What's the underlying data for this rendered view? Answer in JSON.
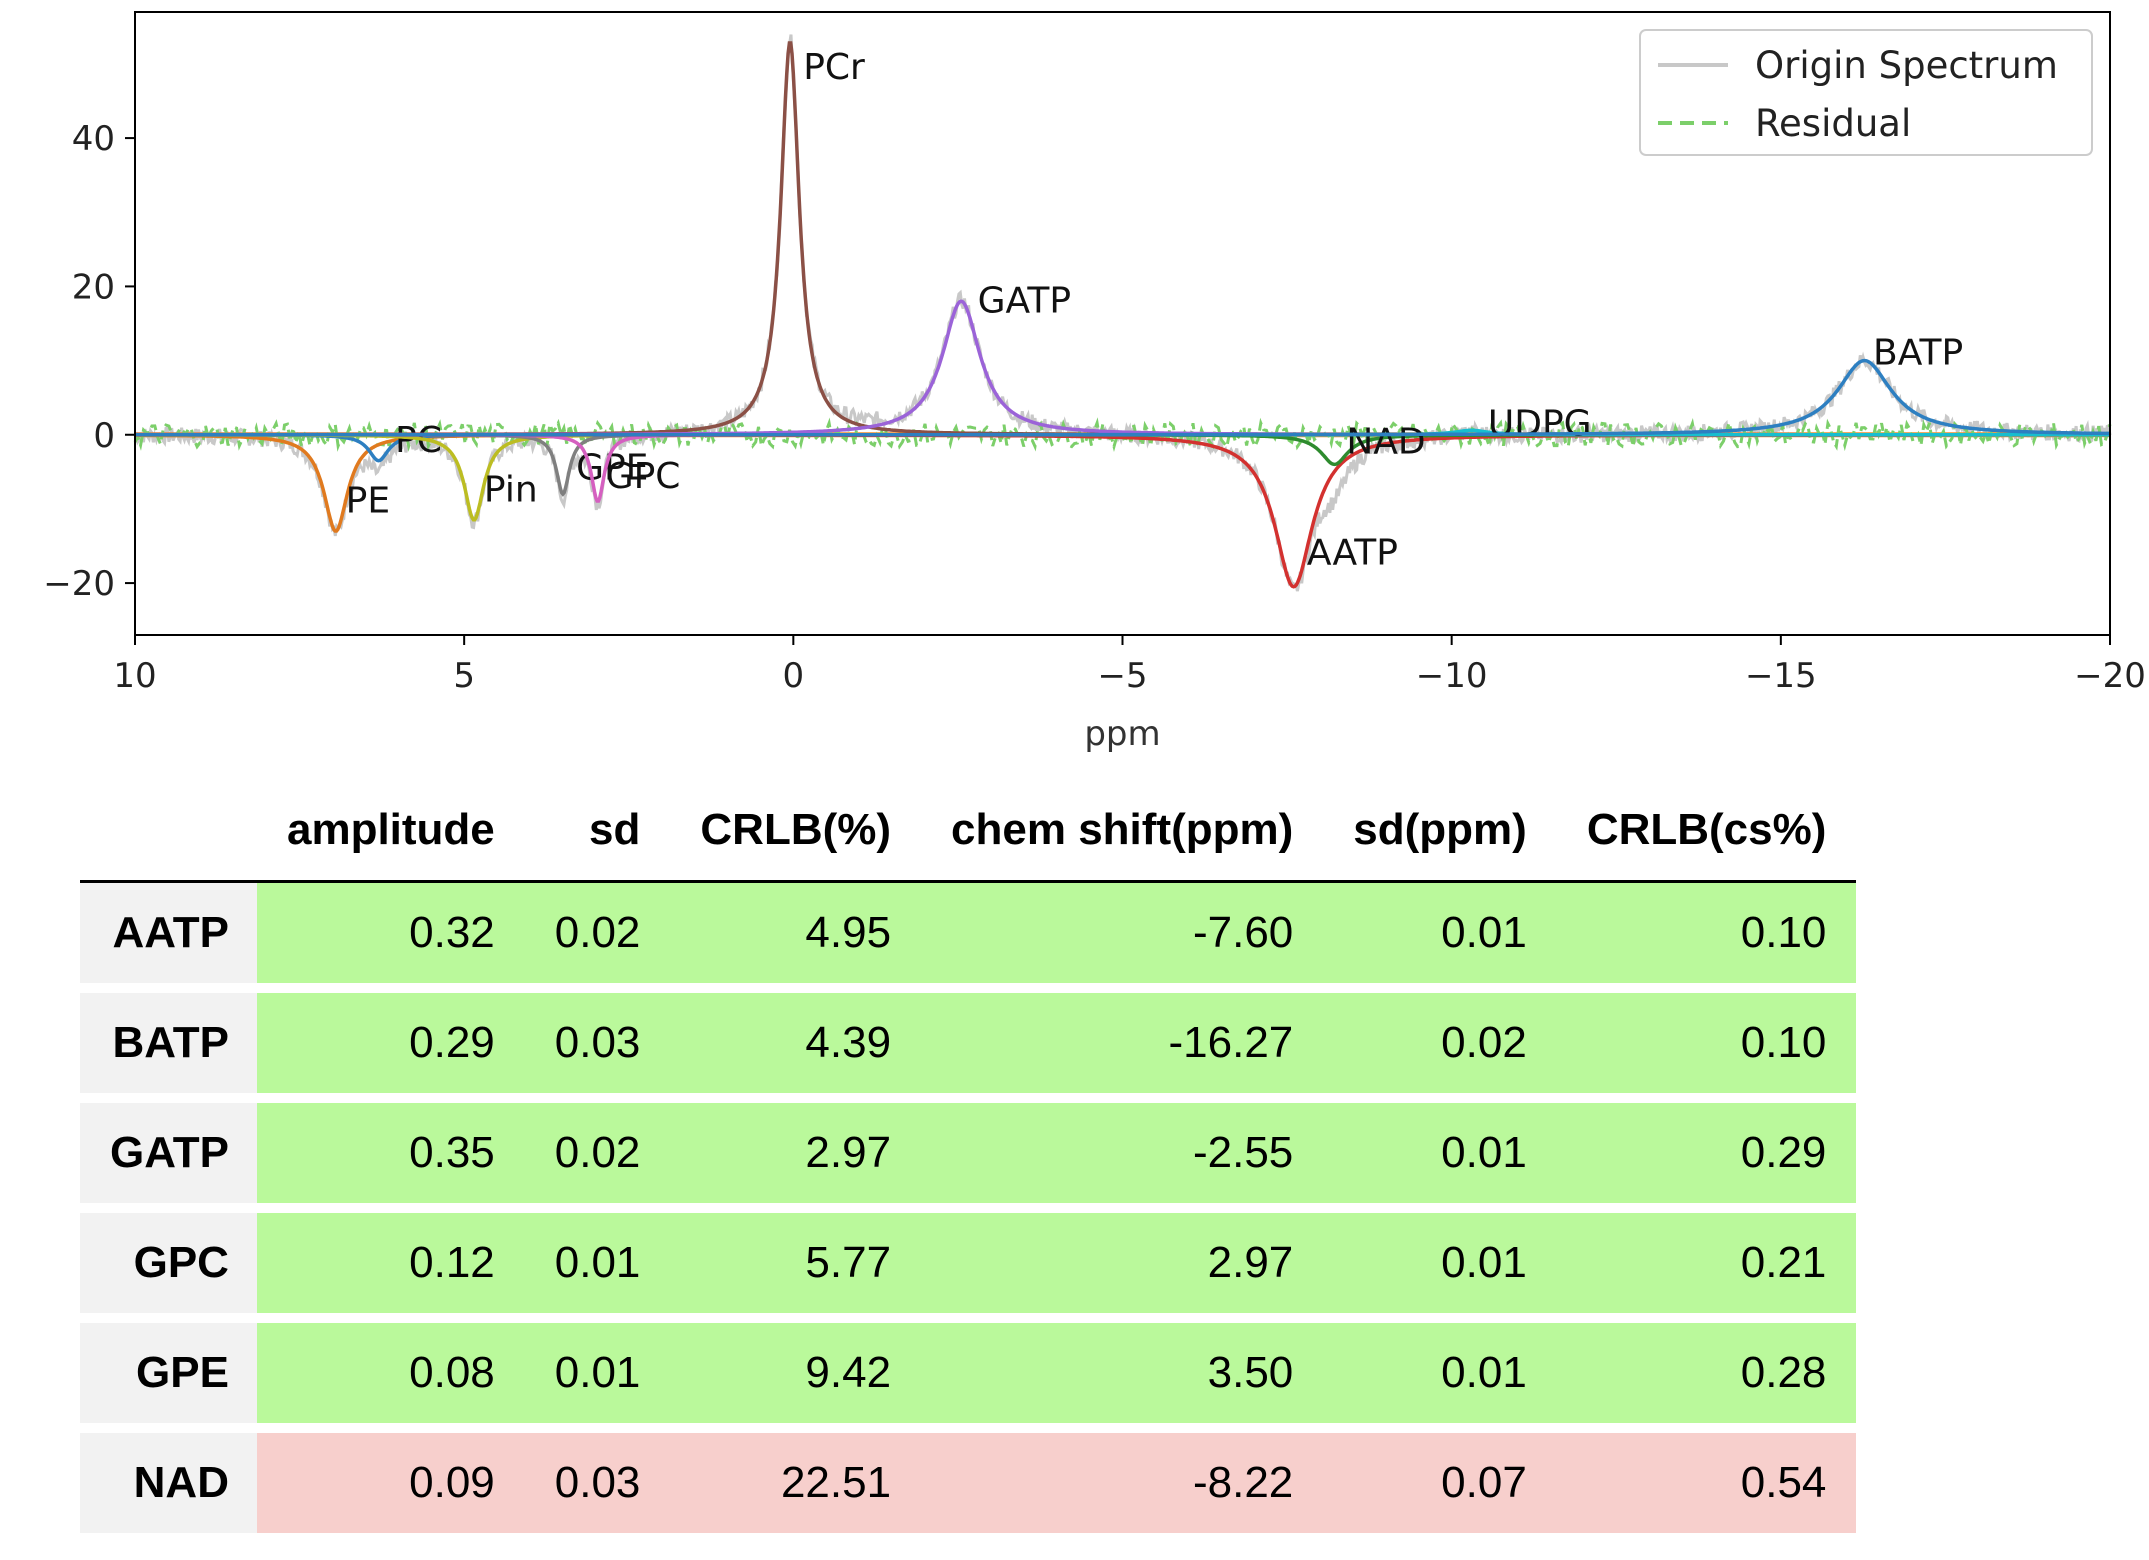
{
  "chart_data": {
    "type": "line",
    "xlabel": "ppm",
    "ylabel": "",
    "xlim": [
      10,
      -20
    ],
    "ylim": [
      -27,
      57
    ],
    "x_ticks": [
      10,
      5,
      0,
      -5,
      -10,
      -15,
      -20
    ],
    "x_tick_labels": [
      "10",
      "5",
      "0",
      "−5",
      "−10",
      "−15",
      "−20"
    ],
    "y_ticks": [
      40,
      20,
      0,
      -20
    ],
    "y_tick_labels": [
      "40",
      "20",
      "0",
      "−20"
    ],
    "grid": false,
    "legend_position": "top-right",
    "legend": [
      {
        "label": "Origin Spectrum",
        "color": "#c8c8c8",
        "dash": "solid"
      },
      {
        "label": "Residual",
        "color": "#7ccf6a",
        "dash": "dashed"
      }
    ],
    "peaks": [
      {
        "name": "PE",
        "center": 6.95,
        "amp": -13.0,
        "width": 0.22,
        "color": "#e07a1f",
        "label_x": 6.8,
        "label_y": -10.5
      },
      {
        "name": "PC",
        "center": 6.3,
        "amp": -3.5,
        "width": 0.18,
        "color": "#2d7fc1",
        "label_x": 6.05,
        "label_y": -2.3
      },
      {
        "name": "Pin",
        "center": 4.85,
        "amp": -11.5,
        "width": 0.18,
        "color": "#bcbd22",
        "label_x": 4.7,
        "label_y": -9.0
      },
      {
        "name": "GPE",
        "center": 3.5,
        "amp": -8.0,
        "width": 0.12,
        "color": "#7f7f7f",
        "label_x": 3.3,
        "label_y": -6.0
      },
      {
        "name": "GPC",
        "center": 2.97,
        "amp": -9.0,
        "width": 0.12,
        "color": "#d55fc0",
        "label_x": 2.85,
        "label_y": -7.2
      },
      {
        "name": "PCr",
        "center": 0.05,
        "amp": 53.0,
        "width": 0.17,
        "color": "#8b5046",
        "label_x": -0.15,
        "label_y": 48.0
      },
      {
        "name": "GATP",
        "center": -2.55,
        "amp": 18.0,
        "width": 0.35,
        "color": "#9b63d8",
        "label_x": -2.8,
        "label_y": 16.5
      },
      {
        "name": "AATP",
        "center": -7.6,
        "amp": -20.5,
        "width": 0.35,
        "color": "#d3312f",
        "label_x": -7.8,
        "label_y": -17.5
      },
      {
        "name": "NAD",
        "center": -8.22,
        "amp": -4.0,
        "width": 0.25,
        "color": "#2e8b2e",
        "label_x": -8.4,
        "label_y": -2.5
      },
      {
        "name": "UDPG",
        "center": -10.3,
        "amp": 0.6,
        "width": 0.3,
        "color": "#17becf",
        "label_x": -10.55,
        "label_y": -0.1
      },
      {
        "name": "BATP",
        "center": -16.27,
        "amp": 10.0,
        "width": 0.5,
        "color": "#2d7fc1",
        "label_x": -16.4,
        "label_y": 9.5
      }
    ],
    "table": {
      "columns": [
        "amplitude",
        "sd",
        "CRLB(%)",
        "chem shift(ppm)",
        "sd(ppm)",
        "CRLB(cs%)"
      ],
      "rows": [
        {
          "name": "AATP",
          "status": "good",
          "values": [
            "0.32",
            "0.02",
            "4.95",
            "-7.60",
            "0.01",
            "0.10"
          ]
        },
        {
          "name": "BATP",
          "status": "good",
          "values": [
            "0.29",
            "0.03",
            "4.39",
            "-16.27",
            "0.02",
            "0.10"
          ]
        },
        {
          "name": "GATP",
          "status": "good",
          "values": [
            "0.35",
            "0.02",
            "2.97",
            "-2.55",
            "0.01",
            "0.29"
          ]
        },
        {
          "name": "GPC",
          "status": "good",
          "values": [
            "0.12",
            "0.01",
            "5.77",
            "2.97",
            "0.01",
            "0.21"
          ]
        },
        {
          "name": "GPE",
          "status": "good",
          "values": [
            "0.08",
            "0.01",
            "9.42",
            "3.50",
            "0.01",
            "0.28"
          ]
        },
        {
          "name": "NAD",
          "status": "bad",
          "values": [
            "0.09",
            "0.03",
            "22.51",
            "-8.22",
            "0.07",
            "0.54"
          ]
        }
      ]
    }
  },
  "colors": {
    "good_cell": "#baf99b",
    "bad_cell": "#f7cfcc",
    "row_header": "#f2f2f2",
    "baseline": "#f28e2b"
  }
}
